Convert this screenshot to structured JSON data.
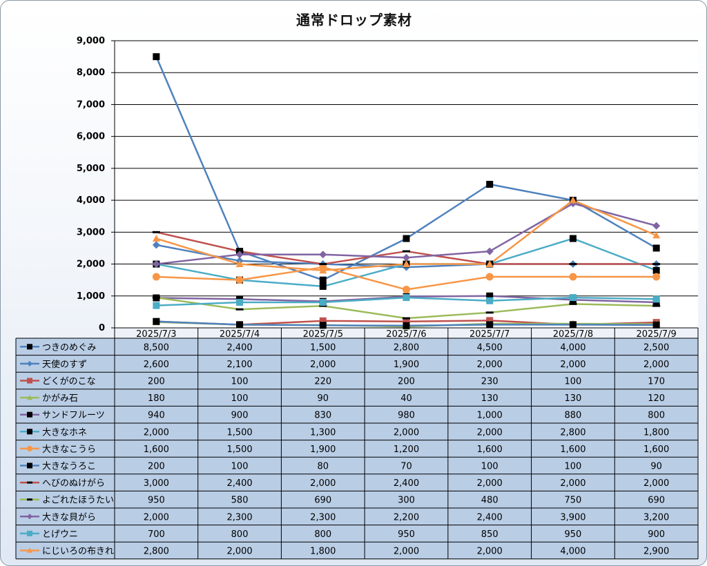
{
  "chart_data": {
    "type": "line",
    "title": "通常ドロップ素材",
    "categories": [
      "2025/7/3",
      "2025/7/4",
      "2025/7/5",
      "2025/7/6",
      "2025/7/7",
      "2025/7/8",
      "2025/7/9"
    ],
    "ylim": [
      0,
      9000
    ],
    "yticks": [
      "0",
      "1,000",
      "2,000",
      "3,000",
      "4,000",
      "5,000",
      "6,000",
      "7,000",
      "8,000",
      "9,000"
    ],
    "grid": true,
    "legend": "data-table",
    "series": [
      {
        "name": "つきのめぐみ",
        "color": "#4f81bd",
        "marker": "square",
        "marker_color": "#000000",
        "values": [
          8500,
          2400,
          1500,
          2800,
          4500,
          4000,
          2500
        ],
        "labels": [
          "8,500",
          "2,400",
          "1,500",
          "2,800",
          "4,500",
          "4,000",
          "2,500"
        ]
      },
      {
        "name": "天使のすず",
        "color": "#4f81bd",
        "marker": "diamond",
        "marker_color": "#4f81bd",
        "values": [
          2600,
          2100,
          2000,
          1900,
          2000,
          2000,
          2000
        ],
        "labels": [
          "2,600",
          "2,100",
          "2,000",
          "1,900",
          "2,000",
          "2,000",
          "2,000"
        ]
      },
      {
        "name": "どくがのこな",
        "color": "#c0504d",
        "marker": "square",
        "marker_color": "#c0504d",
        "values": [
          200,
          100,
          220,
          200,
          230,
          100,
          170
        ],
        "labels": [
          "200",
          "100",
          "220",
          "200",
          "230",
          "100",
          "170"
        ]
      },
      {
        "name": "かがみ石",
        "color": "#9bbb59",
        "marker": "triangle",
        "marker_color": "#9bbb59",
        "values": [
          180,
          100,
          90,
          40,
          130,
          130,
          120
        ],
        "labels": [
          "180",
          "100",
          "90",
          "40",
          "130",
          "130",
          "120"
        ]
      },
      {
        "name": "サンドフルーツ",
        "color": "#8064a2",
        "marker": "square",
        "marker_color": "#000000",
        "values": [
          940,
          900,
          830,
          980,
          1000,
          880,
          800
        ],
        "labels": [
          "940",
          "900",
          "830",
          "980",
          "1,000",
          "880",
          "800"
        ]
      },
      {
        "name": "大きなホネ",
        "color": "#4bacc6",
        "marker": "square",
        "marker_color": "#000000",
        "values": [
          2000,
          1500,
          1300,
          2000,
          2000,
          2800,
          1800
        ],
        "labels": [
          "2,000",
          "1,500",
          "1,300",
          "2,000",
          "2,000",
          "2,800",
          "1,800"
        ]
      },
      {
        "name": "大きなこうら",
        "color": "#f79646",
        "marker": "circle",
        "marker_color": "#f79646",
        "values": [
          1600,
          1500,
          1900,
          1200,
          1600,
          1600,
          1600
        ],
        "labels": [
          "1,600",
          "1,500",
          "1,900",
          "1,200",
          "1,600",
          "1,600",
          "1,600"
        ]
      },
      {
        "name": "大きなうろこ",
        "color": "#4f81bd",
        "marker": "square",
        "marker_color": "#000000",
        "values": [
          200,
          100,
          80,
          70,
          100,
          100,
          90
        ],
        "labels": [
          "200",
          "100",
          "80",
          "70",
          "100",
          "100",
          "90"
        ]
      },
      {
        "name": "へびのぬけがら",
        "color": "#c0504d",
        "marker": "dash",
        "marker_color": "#000000",
        "values": [
          3000,
          2400,
          2000,
          2400,
          2000,
          2000,
          2000
        ],
        "labels": [
          "3,000",
          "2,400",
          "2,000",
          "2,400",
          "2,000",
          "2,000",
          "2,000"
        ]
      },
      {
        "name": "よごれたほうたい",
        "color": "#9bbb59",
        "marker": "dash",
        "marker_color": "#000000",
        "values": [
          950,
          580,
          690,
          300,
          480,
          750,
          690
        ],
        "labels": [
          "950",
          "580",
          "690",
          "300",
          "480",
          "750",
          "690"
        ]
      },
      {
        "name": "大きな貝がら",
        "color": "#8064a2",
        "marker": "diamond",
        "marker_color": "#8064a2",
        "values": [
          2000,
          2300,
          2300,
          2200,
          2400,
          3900,
          3200
        ],
        "labels": [
          "2,000",
          "2,300",
          "2,300",
          "2,200",
          "2,400",
          "3,900",
          "3,200"
        ]
      },
      {
        "name": "とげウニ",
        "color": "#4bacc6",
        "marker": "square",
        "marker_color": "#4bacc6",
        "values": [
          700,
          800,
          800,
          950,
          850,
          950,
          900
        ],
        "labels": [
          "700",
          "800",
          "800",
          "950",
          "850",
          "950",
          "900"
        ]
      },
      {
        "name": "にじいろの布きれ",
        "color": "#f79646",
        "marker": "triangle",
        "marker_color": "#f79646",
        "values": [
          2800,
          2000,
          1800,
          2000,
          2000,
          4000,
          2900
        ],
        "labels": [
          "2,800",
          "2,000",
          "1,800",
          "2,000",
          "2,000",
          "4,000",
          "2,900"
        ]
      }
    ]
  }
}
